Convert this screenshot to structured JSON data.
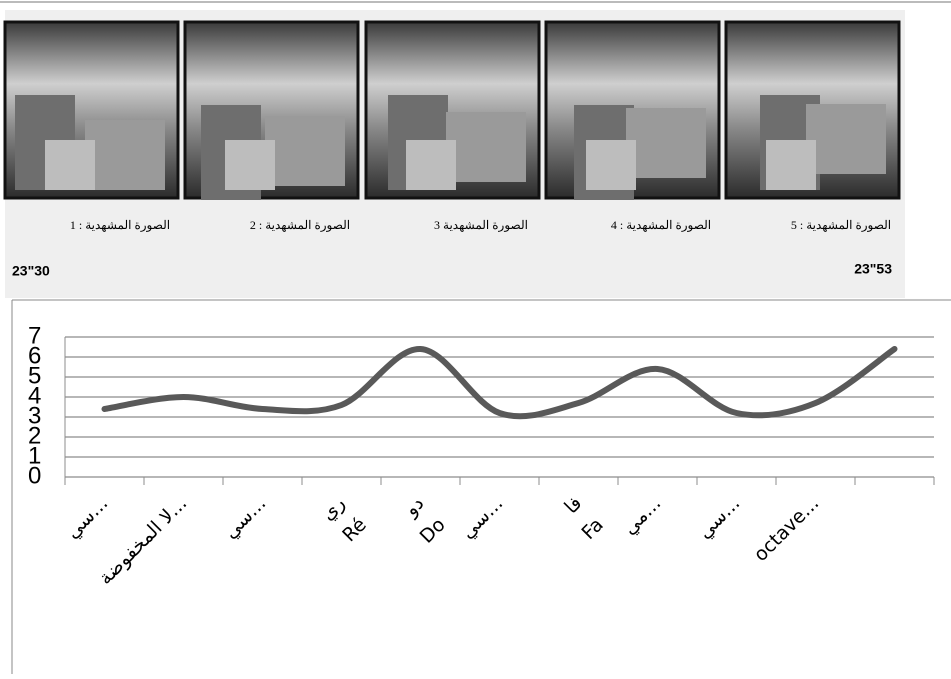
{
  "strip": {
    "frames": [
      {
        "caption": "الصورة المشهدية : 1"
      },
      {
        "caption": "الصورة المشهدية : 2"
      },
      {
        "caption": "الصورة المشهدية 3"
      },
      {
        "caption": "الصورة المشهدية : 4"
      },
      {
        "caption": "الصورة المشهدية : 5"
      }
    ],
    "time_start": "23\"30",
    "time_end": "23\"53"
  },
  "chart_data": {
    "type": "line",
    "categories": [
      [
        "سي..."
      ],
      [
        "لا المخفوضة..."
      ],
      [
        "سي..."
      ],
      [
        "ري",
        "Ré"
      ],
      [
        "دو",
        "Do"
      ],
      [
        "سي..."
      ],
      [
        "فا",
        "Fa"
      ],
      [
        "مي..."
      ],
      [
        "سي..."
      ],
      [
        "octave..."
      ],
      null
    ],
    "series": [
      {
        "color": "#595959",
        "values": [
          3.4,
          4.0,
          3.4,
          3.6,
          6.4,
          3.2,
          3.7,
          5.4,
          3.2,
          3.7,
          6.4
        ]
      }
    ],
    "ylim": [
      0,
      7
    ],
    "yticks": [
      0,
      1,
      2,
      3,
      4,
      5,
      6,
      7
    ],
    "grid": true
  }
}
